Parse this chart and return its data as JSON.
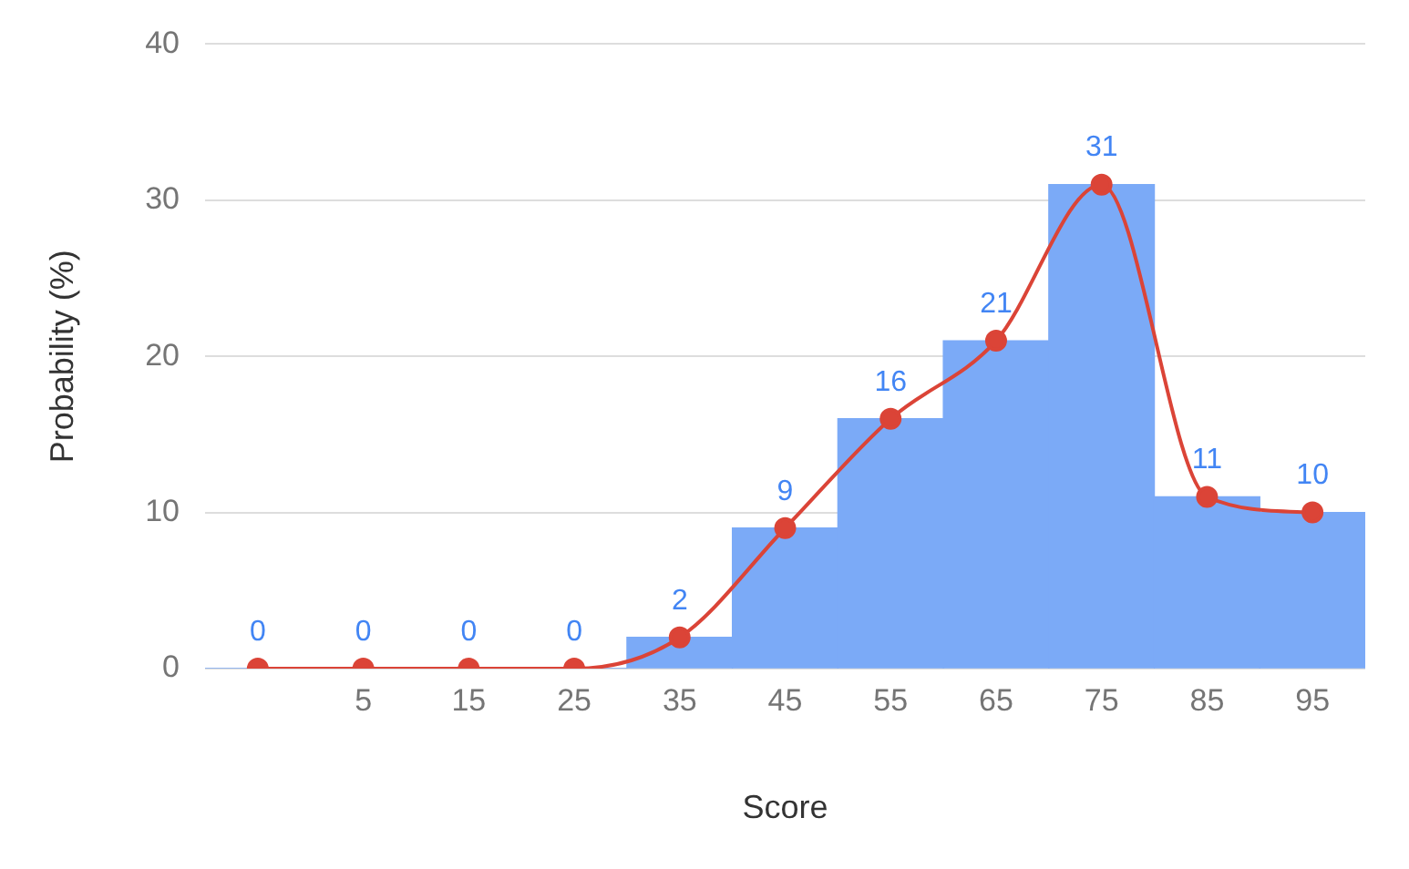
{
  "chart_data": {
    "type": "line",
    "xlabel": "Score",
    "ylabel": "Probability (%)",
    "categories": [
      null,
      "5",
      "15",
      "25",
      "35",
      "45",
      "55",
      "65",
      "75",
      "85",
      "95"
    ],
    "series": [
      {
        "color": "#db4437",
        "values": [
          0,
          0,
          0,
          0,
          2,
          9,
          16,
          21,
          31,
          11,
          10
        ],
        "value_labels": [
          "0",
          "0",
          "0",
          "0",
          "2",
          "9",
          "16",
          "21",
          "31",
          "11",
          "10"
        ]
      },
      {
        "type": "bar",
        "color": "#7baaf7",
        "values": [
          0,
          0,
          0,
          0,
          2,
          9,
          16,
          21,
          31,
          11,
          10
        ]
      }
    ],
    "ylim": [
      0,
      40
    ],
    "yticks": [
      0,
      10,
      20,
      30,
      40
    ],
    "grid": "y",
    "legend": false,
    "marker": "circle"
  }
}
